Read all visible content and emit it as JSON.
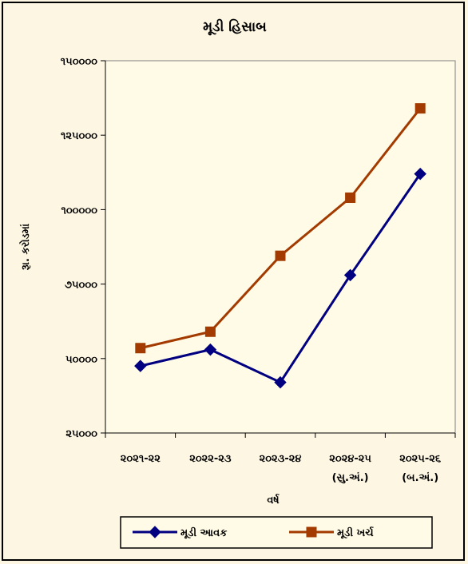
{
  "chart_data": {
    "type": "line",
    "title": "મૂડી હિસાબ",
    "xlabel": "વર્ષ",
    "ylabel": "રૂા. કરોડમાં",
    "categories": [
      [
        "૨૦૨૧-૨૨",
        ""
      ],
      [
        "૨૦૨૨-૨૩",
        ""
      ],
      [
        "૨૦૨૩-૨૪",
        ""
      ],
      [
        "૨૦૨૪-૨૫",
        "(સુ.અં.)"
      ],
      [
        "૨૦૨૫-૨૬",
        "(બ.અં.)"
      ]
    ],
    "ylim": [
      25000,
      150000
    ],
    "yticks": [
      25000,
      50000,
      75000,
      100000,
      125000,
      150000
    ],
    "ytick_labels": [
      "૨૫૦૦૦",
      "૫૦૦૦૦",
      "૭૫૦૦૦",
      "૧૦૦૦૦૦",
      "૧૨૫૦૦૦",
      "૧૫૦૦૦૦"
    ],
    "grid": false,
    "legend_position": "bottom",
    "series": [
      {
        "name": "મૂડી આવક",
        "marker": "diamond",
        "color": "#000080",
        "values": [
          47500,
          53000,
          42000,
          78000,
          112000
        ]
      },
      {
        "name": "મૂડી ખર્ચ",
        "marker": "square",
        "color": "#a33b00",
        "values": [
          53500,
          59000,
          84500,
          104000,
          134000
        ]
      }
    ],
    "plot_background": "#fffbe6"
  }
}
